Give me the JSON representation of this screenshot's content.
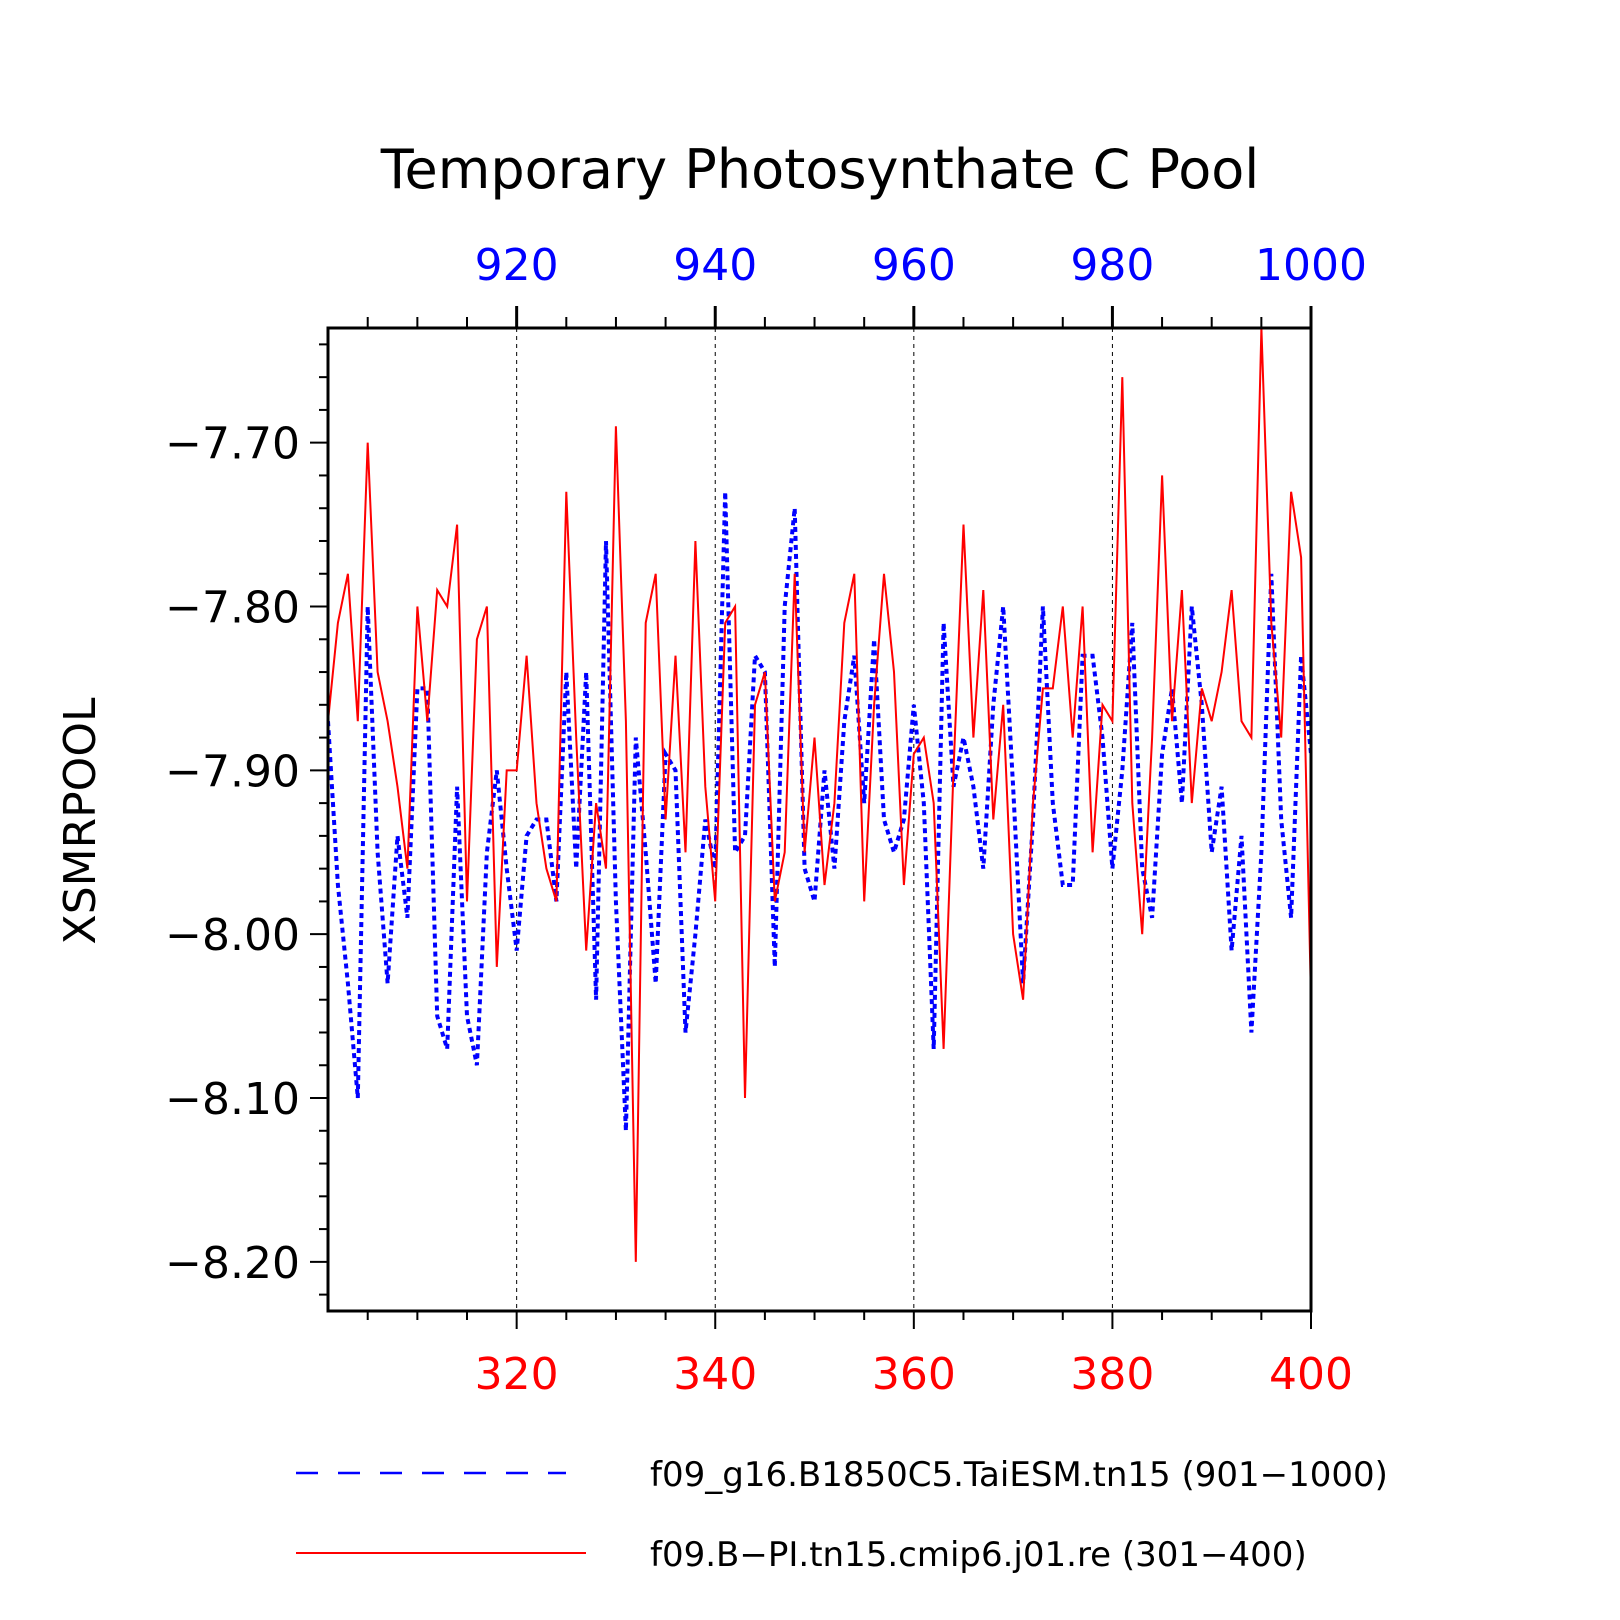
{
  "chart_data": {
    "type": "line",
    "title": "Temporary Photosynthate C Pool",
    "ylabel": "XSMRPOOL",
    "ylim": [
      -8.23,
      -7.63
    ],
    "yticks": [
      -7.7,
      -7.8,
      -7.9,
      -8.0,
      -8.1,
      -8.2
    ],
    "ytick_labels": [
      "−7.70",
      "−7.80",
      "−7.90",
      "−8.00",
      "−8.10",
      "−8.20"
    ],
    "grid": "vertical dashed lines at major x ticks",
    "bottom_axis": {
      "xlim": [
        301,
        400
      ],
      "ticks": [
        320,
        340,
        360,
        380,
        400
      ],
      "tick_labels": [
        "320",
        "340",
        "360",
        "380",
        "400"
      ],
      "color": "#ff0000"
    },
    "top_axis": {
      "xlim": [
        901,
        1000
      ],
      "ticks": [
        920,
        940,
        960,
        980,
        1000
      ],
      "tick_labels": [
        "920",
        "940",
        "960",
        "980",
        "1000"
      ],
      "color": "#0000ff"
    },
    "series": [
      {
        "name": "f09_g16.B1850C5.TaiESM.tn15 (901−1000)",
        "color": "#0000ff",
        "style": "dashed",
        "axis": "top",
        "x_start": 901,
        "values": [
          -7.87,
          -7.97,
          -8.03,
          -8.1,
          -7.8,
          -7.95,
          -8.03,
          -7.94,
          -7.99,
          -7.85,
          -7.85,
          -8.05,
          -8.07,
          -7.91,
          -8.05,
          -8.08,
          -7.95,
          -7.9,
          -7.96,
          -8.01,
          -7.94,
          -7.93,
          -7.93,
          -7.98,
          -7.84,
          -7.96,
          -7.84,
          -8.04,
          -7.76,
          -7.98,
          -8.12,
          -7.88,
          -7.95,
          -8.03,
          -7.89,
          -7.9,
          -8.06,
          -8.0,
          -7.93,
          -7.96,
          -7.73,
          -7.95,
          -7.94,
          -7.83,
          -7.84,
          -8.02,
          -7.8,
          -7.74,
          -7.96,
          -7.98,
          -7.9,
          -7.96,
          -7.87,
          -7.83,
          -7.92,
          -7.82,
          -7.93,
          -7.95,
          -7.93,
          -7.86,
          -7.92,
          -8.07,
          -7.81,
          -7.91,
          -7.88,
          -7.91,
          -7.96,
          -7.86,
          -7.8,
          -7.91,
          -8.03,
          -7.93,
          -7.8,
          -7.92,
          -7.97,
          -7.97,
          -7.83,
          -7.83,
          -7.88,
          -7.96,
          -7.9,
          -7.81,
          -7.96,
          -7.99,
          -7.89,
          -7.85,
          -7.92,
          -7.8,
          -7.86,
          -7.95,
          -7.91,
          -8.01,
          -7.94,
          -8.06,
          -7.95,
          -7.78,
          -7.93,
          -7.99,
          -7.83,
          -7.89
        ]
      },
      {
        "name": "f09.B−PI.tn15.cmip6.j01.re (301−400)",
        "color": "#ff0000",
        "style": "solid",
        "axis": "bottom",
        "x_start": 301,
        "values": [
          -7.87,
          -7.81,
          -7.78,
          -7.87,
          -7.7,
          -7.84,
          -7.87,
          -7.91,
          -7.96,
          -7.8,
          -7.87,
          -7.79,
          -7.8,
          -7.75,
          -7.98,
          -7.82,
          -7.8,
          -8.02,
          -7.9,
          -7.9,
          -7.83,
          -7.92,
          -7.96,
          -7.98,
          -7.73,
          -7.88,
          -8.01,
          -7.92,
          -7.96,
          -7.69,
          -7.87,
          -8.2,
          -7.81,
          -7.78,
          -7.93,
          -7.83,
          -7.95,
          -7.76,
          -7.91,
          -7.98,
          -7.81,
          -7.8,
          -8.1,
          -7.86,
          -7.84,
          -7.98,
          -7.95,
          -7.78,
          -7.95,
          -7.88,
          -7.97,
          -7.92,
          -7.81,
          -7.78,
          -7.98,
          -7.86,
          -7.78,
          -7.84,
          -7.97,
          -7.89,
          -7.88,
          -7.92,
          -8.07,
          -7.9,
          -7.75,
          -7.88,
          -7.79,
          -7.93,
          -7.86,
          -8.0,
          -8.04,
          -7.92,
          -7.85,
          -7.85,
          -7.8,
          -7.88,
          -7.8,
          -7.95,
          -7.86,
          -7.87,
          -7.66,
          -7.92,
          -8.0,
          -7.88,
          -7.72,
          -7.87,
          -7.79,
          -7.92,
          -7.85,
          -7.87,
          -7.84,
          -7.79,
          -7.87,
          -7.88,
          -7.63,
          -7.81,
          -7.88,
          -7.73,
          -7.77,
          -8.04
        ]
      }
    ],
    "legend": {
      "placement": "bottom",
      "entries": [
        "f09_g16.B1850C5.TaiESM.tn15 (901−1000)",
        "f09.B−PI.tn15.cmip6.j01.re (301−400)"
      ]
    }
  }
}
